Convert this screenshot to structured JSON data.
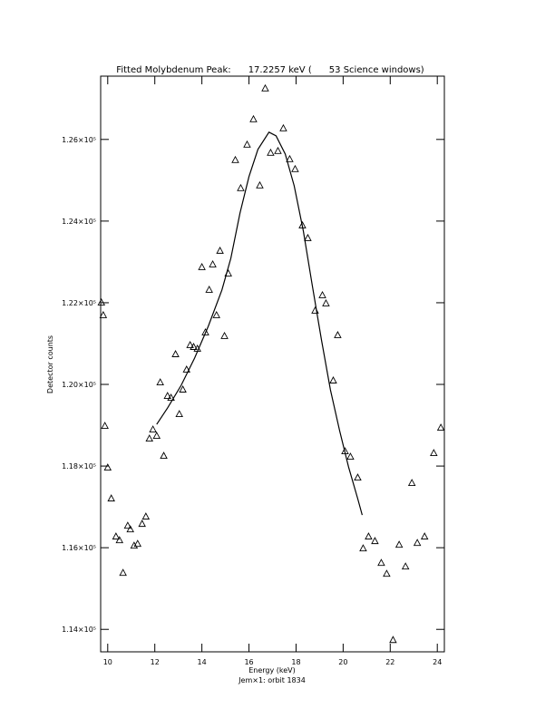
{
  "chart_data": {
    "type": "scatter",
    "title": "Fitted Molybdenum Peak:      17.2257 keV (      53 Science windows)",
    "x_label": "Energy (keV)",
    "subtitle": "Jem×1: orbit 1834",
    "y_label": "Detector counts",
    "xlim": [
      9.7,
      24.3
    ],
    "ylim": [
      113450,
      127550
    ],
    "xticks": [
      10,
      12,
      14,
      16,
      18,
      20,
      22,
      24
    ],
    "yticks": [
      {
        "value": 114000,
        "label": "1.14×10⁵"
      },
      {
        "value": 116000,
        "label": "1.16×10⁵"
      },
      {
        "value": 118000,
        "label": "1.18×10⁵"
      },
      {
        "value": 120000,
        "label": "1.20×10⁵"
      },
      {
        "value": 122000,
        "label": "1.22×10⁵"
      },
      {
        "value": 124000,
        "label": "1.24×10⁵"
      },
      {
        "value": 126000,
        "label": "1.26×10⁵"
      }
    ],
    "series": [
      {
        "marker": "triangle",
        "color": "#000000",
        "x": [
          9.73,
          9.81,
          9.88,
          10,
          10.15,
          10.35,
          10.5,
          10.65,
          10.85,
          10.96,
          11.12,
          11.27,
          11.46,
          11.62,
          11.77,
          11.92,
          12.08,
          12.23,
          12.38,
          12.54,
          12.69,
          12.88,
          13.04,
          13.19,
          13.35,
          13.5,
          13.65,
          13.81,
          14,
          14.15,
          14.31,
          14.46,
          14.62,
          14.77,
          14.96,
          15.12,
          15.42,
          15.65,
          15.92,
          16.19,
          16.46,
          16.69,
          16.92,
          17.23,
          17.46,
          17.73,
          17.96,
          18.27,
          18.5,
          18.81,
          19.12,
          19.27,
          19.58,
          19.77,
          20.08,
          20.31,
          20.62,
          20.85,
          21.08,
          21.35,
          21.62,
          21.85,
          22.12,
          22.38,
          22.65,
          22.92,
          23.15,
          23.46,
          23.85,
          24.15
        ],
        "values": [
          122000,
          121689,
          118978,
          117956,
          117200,
          116267,
          116178,
          115378,
          116533,
          116444,
          116044,
          116089,
          116578,
          116756,
          118667,
          118889,
          118733,
          120044,
          118244,
          119711,
          119667,
          120733,
          119267,
          119867,
          120356,
          120956,
          120911,
          120867,
          122867,
          121267,
          122311,
          122933,
          121689,
          123267,
          121178,
          122711,
          125489,
          124800,
          125867,
          126489,
          124867,
          127244,
          125667,
          125711,
          126267,
          125511,
          125267,
          123889,
          123578,
          121800,
          122178,
          121978,
          120089,
          121200,
          118356,
          118222,
          117711,
          115978,
          116267,
          116156,
          115622,
          115356,
          113733,
          116067,
          115533,
          117578,
          116111,
          116267,
          118311,
          118933
        ]
      },
      {
        "line": true,
        "color": "#000000",
        "x": [
          12.08,
          12.54,
          13.12,
          13.69,
          14.27,
          14.85,
          15.23,
          15.62,
          16,
          16.38,
          16.85,
          17.15,
          17.54,
          17.92,
          18.31,
          18.69,
          19.08,
          19.46,
          19.85,
          20.23,
          20.62,
          20.81
        ],
        "values": [
          119022,
          119422,
          119978,
          120644,
          121422,
          122311,
          123089,
          124200,
          125089,
          125756,
          126178,
          126089,
          125644,
          124867,
          123756,
          122422,
          121089,
          119867,
          118867,
          117978,
          117200,
          116800
        ]
      }
    ]
  }
}
